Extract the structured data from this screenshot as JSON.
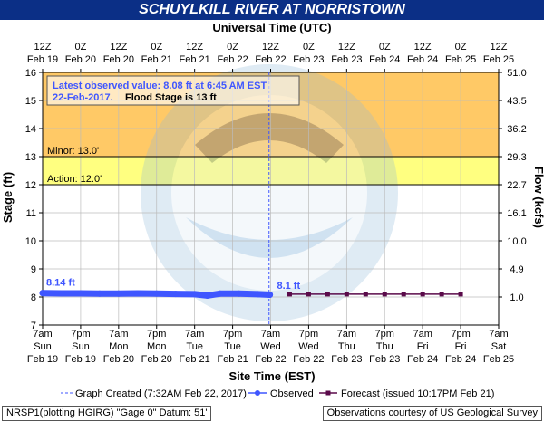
{
  "title": "SCHUYLKILL RIVER AT NORRISTOWN",
  "top_axis_label": "Universal Time (UTC)",
  "bottom_axis_label": "Site Time (EST)",
  "left_axis_label": "Stage (ft)",
  "right_axis_label": "Flow (kcfs)",
  "annotation_box": {
    "line1": "Latest observed value: 8.08 ft at 6:45 AM EST",
    "line2_date": "22-Feb-2017.",
    "line2_flood": "Flood Stage is 13 ft"
  },
  "colors": {
    "title_bg": "#0b2f86",
    "flood_band": "#ffc966",
    "minor_band": "#ffff80",
    "observed": "#3f56ff",
    "forecast": "#5a0a4a"
  },
  "footer": {
    "left": "NRSP1(plotting HGIRG) \"Gage 0\" Datum: 51'",
    "right": "Observations courtesy of US Geological Survey"
  },
  "legend": {
    "created": "Graph Created (7:32AM Feb 22, 2017)",
    "observed": "Observed",
    "forecast": "Forecast (issued 10:17PM Feb 21)"
  },
  "chart_data": {
    "type": "line",
    "ylim": [
      7,
      16
    ],
    "y_ticks": [
      7,
      8,
      9,
      10,
      11,
      12,
      13,
      14,
      15,
      16
    ],
    "flow_ticks": [
      {
        "stage": 8,
        "label": "1.0"
      },
      {
        "stage": 9,
        "label": "4.9"
      },
      {
        "stage": 10,
        "label": "10.0"
      },
      {
        "stage": 11,
        "label": "16.1"
      },
      {
        "stage": 12,
        "label": "22.7"
      },
      {
        "stage": 13,
        "label": "29.3"
      },
      {
        "stage": 14,
        "label": "36.2"
      },
      {
        "stage": 15,
        "label": "43.5"
      },
      {
        "stage": 16,
        "label": "51.0"
      }
    ],
    "x_range_hours": [
      0,
      144
    ],
    "x_origin_label": "7am Sun Feb 19 EST",
    "top_ticks": [
      {
        "h": 0,
        "l1": "12Z",
        "l2": "Feb 19"
      },
      {
        "h": 12,
        "l1": "0Z",
        "l2": "Feb 20"
      },
      {
        "h": 24,
        "l1": "12Z",
        "l2": "Feb 20"
      },
      {
        "h": 36,
        "l1": "0Z",
        "l2": "Feb 21"
      },
      {
        "h": 48,
        "l1": "12Z",
        "l2": "Feb 21"
      },
      {
        "h": 60,
        "l1": "0Z",
        "l2": "Feb 22"
      },
      {
        "h": 72,
        "l1": "12Z",
        "l2": "Feb 22"
      },
      {
        "h": 84,
        "l1": "0Z",
        "l2": "Feb 23"
      },
      {
        "h": 96,
        "l1": "12Z",
        "l2": "Feb 23"
      },
      {
        "h": 108,
        "l1": "0Z",
        "l2": "Feb 24"
      },
      {
        "h": 120,
        "l1": "12Z",
        "l2": "Feb 24"
      },
      {
        "h": 132,
        "l1": "0Z",
        "l2": "Feb 25"
      },
      {
        "h": 144,
        "l1": "12Z",
        "l2": "Feb 25"
      }
    ],
    "bottom_ticks": [
      {
        "h": 0,
        "l1": "7am",
        "l2": "Sun",
        "l3": "Feb 19"
      },
      {
        "h": 12,
        "l1": "7pm",
        "l2": "Sun",
        "l3": "Feb 19"
      },
      {
        "h": 24,
        "l1": "7am",
        "l2": "Mon",
        "l3": "Feb 20"
      },
      {
        "h": 36,
        "l1": "7pm",
        "l2": "Mon",
        "l3": "Feb 20"
      },
      {
        "h": 48,
        "l1": "7am",
        "l2": "Tue",
        "l3": "Feb 21"
      },
      {
        "h": 60,
        "l1": "7pm",
        "l2": "Tue",
        "l3": "Feb 21"
      },
      {
        "h": 72,
        "l1": "7am",
        "l2": "Wed",
        "l3": "Feb 22"
      },
      {
        "h": 84,
        "l1": "7pm",
        "l2": "Wed",
        "l3": "Feb 22"
      },
      {
        "h": 96,
        "l1": "7am",
        "l2": "Thu",
        "l3": "Feb 23"
      },
      {
        "h": 108,
        "l1": "7pm",
        "l2": "Thu",
        "l3": "Feb 23"
      },
      {
        "h": 120,
        "l1": "7am",
        "l2": "Fri",
        "l3": "Feb 24"
      },
      {
        "h": 132,
        "l1": "7pm",
        "l2": "Fri",
        "l3": "Feb 24"
      },
      {
        "h": 144,
        "l1": "7am",
        "l2": "Sat",
        "l3": "Feb 25"
      }
    ],
    "bands": [
      {
        "name": "Flood",
        "from": 13,
        "to": 16
      },
      {
        "name": "Minor",
        "from": 12,
        "to": 13
      },
      {
        "name": "Action",
        "from": 7,
        "to": 12
      }
    ],
    "thresholds": [
      {
        "label": "Minor: 13.0'",
        "value": 13
      },
      {
        "label": "Action: 12.0'",
        "value": 12
      }
    ],
    "graph_created_hour": 71.5,
    "series": [
      {
        "name": "Observed",
        "values": [
          {
            "h": 0,
            "y": 8.14
          },
          {
            "h": 6,
            "y": 8.13
          },
          {
            "h": 12,
            "y": 8.13
          },
          {
            "h": 18,
            "y": 8.12
          },
          {
            "h": 24,
            "y": 8.12
          },
          {
            "h": 30,
            "y": 8.13
          },
          {
            "h": 36,
            "y": 8.12
          },
          {
            "h": 42,
            "y": 8.11
          },
          {
            "h": 48,
            "y": 8.1
          },
          {
            "h": 52,
            "y": 8.05
          },
          {
            "h": 56,
            "y": 8.12
          },
          {
            "h": 62,
            "y": 8.12
          },
          {
            "h": 68,
            "y": 8.1
          },
          {
            "h": 71.75,
            "y": 8.08
          }
        ],
        "start_label": "8.14 ft"
      },
      {
        "name": "Forecast",
        "values": [
          {
            "h": 78,
            "y": 8.1
          },
          {
            "h": 84,
            "y": 8.1
          },
          {
            "h": 90,
            "y": 8.1
          },
          {
            "h": 96,
            "y": 8.1
          },
          {
            "h": 102,
            "y": 8.1
          },
          {
            "h": 108,
            "y": 8.1
          },
          {
            "h": 114,
            "y": 8.1
          },
          {
            "h": 120,
            "y": 8.1
          },
          {
            "h": 126,
            "y": 8.1
          },
          {
            "h": 132,
            "y": 8.1
          }
        ],
        "start_label": "8.1 ft"
      }
    ]
  }
}
